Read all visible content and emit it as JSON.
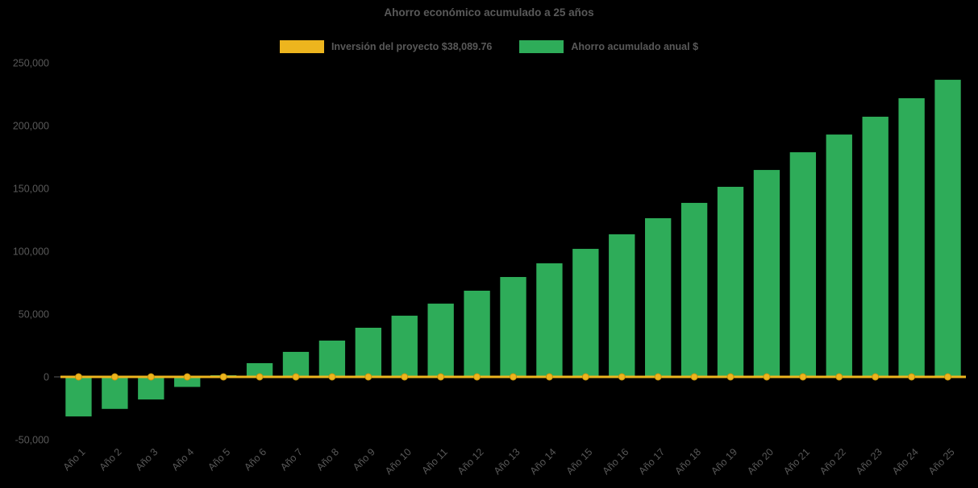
{
  "page": {
    "background": "#000000",
    "text_color": "#595959"
  },
  "chart_data": {
    "type": "bar",
    "title": "Ahorro económico acumulado a 25 años",
    "xlabel": "",
    "ylabel": "",
    "grid": false,
    "legend_position": "top",
    "ylim": [
      -50000,
      250000
    ],
    "yticks": [
      -50000,
      0,
      50000,
      100000,
      150000,
      200000,
      250000
    ],
    "categories": [
      "Año 1",
      "Año 2",
      "Año 3",
      "Año 4",
      "Año 5",
      "Año 6",
      "Año 7",
      "Año 8",
      "Año 9",
      "Año 10",
      "Año 11",
      "Año 12",
      "Año 13",
      "Año 14",
      "Año 15",
      "Año 16",
      "Año 17",
      "Año 18",
      "Año 19",
      "Año 20",
      "Año 21",
      "Año 22",
      "Año 23",
      "Año 24",
      "Año 25"
    ],
    "series": [
      {
        "name": "Inversión del proyecto $38,089.76",
        "type": "line",
        "color": "#EDB51E",
        "marker": "circle",
        "values": [
          0,
          0,
          0,
          0,
          0,
          0,
          0,
          0,
          0,
          0,
          0,
          0,
          0,
          0,
          0,
          0,
          0,
          0,
          0,
          0,
          0,
          0,
          0,
          0,
          0
        ]
      },
      {
        "name": "Ahorro acumulado anual $",
        "type": "bar",
        "color": "#2EAC59",
        "values": [
          -31500,
          -25500,
          -18000,
          -8000,
          1300,
          10900,
          19900,
          28900,
          39100,
          48700,
          58300,
          68600,
          79500,
          90400,
          101900,
          113500,
          126300,
          138500,
          151300,
          164700,
          178800,
          192900,
          207100,
          221800,
          236500
        ]
      }
    ]
  }
}
